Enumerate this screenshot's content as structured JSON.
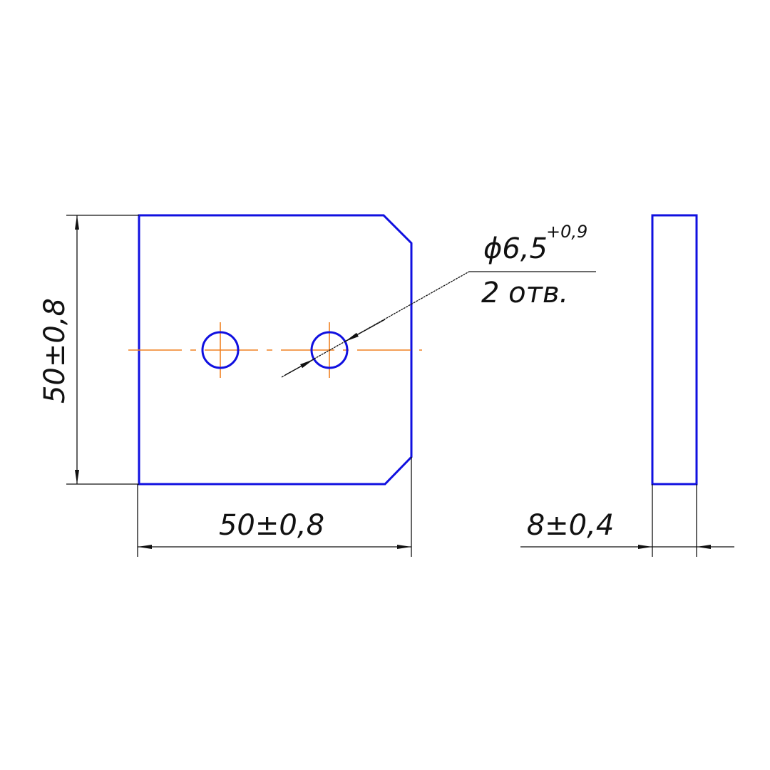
{
  "colors": {
    "outline": "#1010e0",
    "centerline": "#f08020",
    "dimension": "#111111"
  },
  "dimensions": {
    "height": "50±0,8",
    "width": "50±0,8",
    "thickness": "8±0,4"
  },
  "hole_callout": {
    "diameter": "ϕ6,5",
    "tolerance": "+0,9",
    "count": "2 отв."
  }
}
